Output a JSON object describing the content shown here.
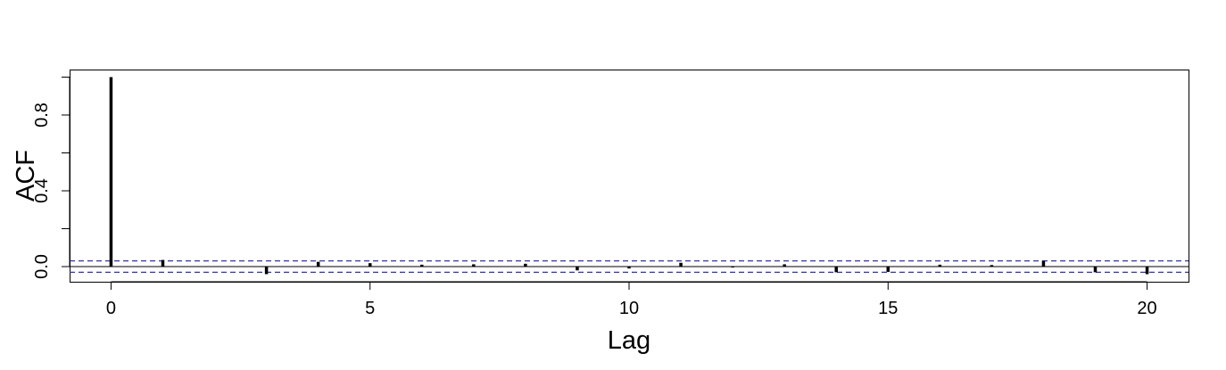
{
  "chart_data": {
    "type": "bar",
    "x": [
      0,
      1,
      2,
      3,
      4,
      5,
      6,
      7,
      8,
      9,
      10,
      11,
      12,
      13,
      14,
      15,
      16,
      17,
      18,
      19,
      20
    ],
    "values": [
      1.0,
      0.035,
      0.0,
      -0.04,
      0.025,
      0.018,
      0.01,
      0.012,
      0.015,
      -0.02,
      -0.01,
      0.02,
      -0.005,
      0.012,
      -0.03,
      -0.028,
      0.01,
      0.008,
      0.03,
      -0.03,
      -0.04
    ],
    "xlabel": "Lag",
    "ylabel": "ACF",
    "xlim": [
      -0.8,
      20.8
    ],
    "ylim": [
      -0.08,
      1.04
    ],
    "x_ticks": [
      0,
      5,
      10,
      15,
      20
    ],
    "x_tick_labels": [
      "0",
      "5",
      "10",
      "15",
      "20"
    ],
    "y_ticks": [
      0.0,
      0.2,
      0.4,
      0.6,
      0.8,
      1.0
    ],
    "y_tick_labels": [
      "0.0",
      "",
      "0.4",
      "",
      "0.8",
      ""
    ],
    "confidence_bound": 0.03,
    "grid": false,
    "colors": {
      "bars": "#000000",
      "zero_line": "#000000",
      "confidence_lines": "#3333aa"
    }
  }
}
